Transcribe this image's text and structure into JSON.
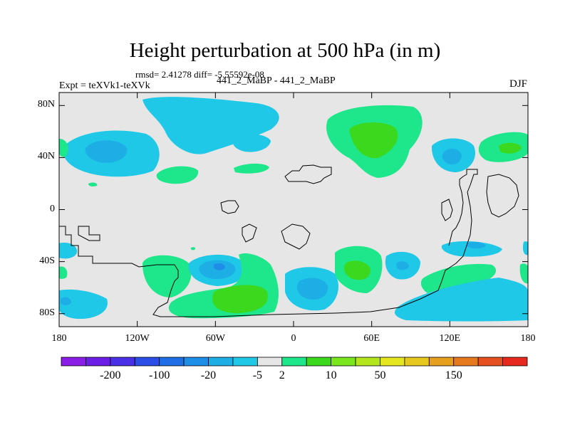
{
  "title": "Height perturbation at 500 hPa (in m)",
  "stats": "rmsd= 2.41278 diff= -5.55592e-08",
  "experiment": "Expt = teXVk1-teXVk",
  "subtitle": "441_2_MaBP - 441_2_MaBP",
  "season": "DJF",
  "map": {
    "lon_range": [
      -180,
      180
    ],
    "lat_range": [
      -90,
      90
    ],
    "y_ticks": [
      {
        "lat": 80,
        "label": "80N"
      },
      {
        "lat": 40,
        "label": "40N"
      },
      {
        "lat": 0,
        "label": "0"
      },
      {
        "lat": -40,
        "label": "40S"
      },
      {
        "lat": -80,
        "label": "80S"
      }
    ],
    "x_ticks": [
      {
        "lon": -180,
        "label": "180"
      },
      {
        "lon": -120,
        "label": "120W"
      },
      {
        "lon": -60,
        "label": "60W"
      },
      {
        "lon": 0,
        "label": "0"
      },
      {
        "lon": 60,
        "label": "60E"
      },
      {
        "lon": 120,
        "label": "120E"
      },
      {
        "lon": 180,
        "label": "180"
      }
    ],
    "background_color": "#e6e6e6"
  },
  "colorbar": {
    "colors": [
      "#8a1ee6",
      "#6a1ee6",
      "#4a30e6",
      "#2a4ee6",
      "#1e6ee6",
      "#1e8ee6",
      "#1eaee6",
      "#1ec8e6",
      "#e6e6e6",
      "#1ee68a",
      "#3cd81e",
      "#7ae61e",
      "#b4e61e",
      "#e6e61e",
      "#e6c81e",
      "#e6a01e",
      "#e6781e",
      "#e6501e",
      "#e6281e"
    ],
    "labels": [
      "-200",
      "-100",
      "-20",
      "-5",
      "2",
      "10",
      "50",
      "150"
    ]
  },
  "colors": {
    "cyan": "#1ec8e6",
    "blue": "#1eaee6",
    "deep_blue": "#1e8ee6",
    "light_green": "#1ee68a",
    "green": "#3cd81e"
  }
}
